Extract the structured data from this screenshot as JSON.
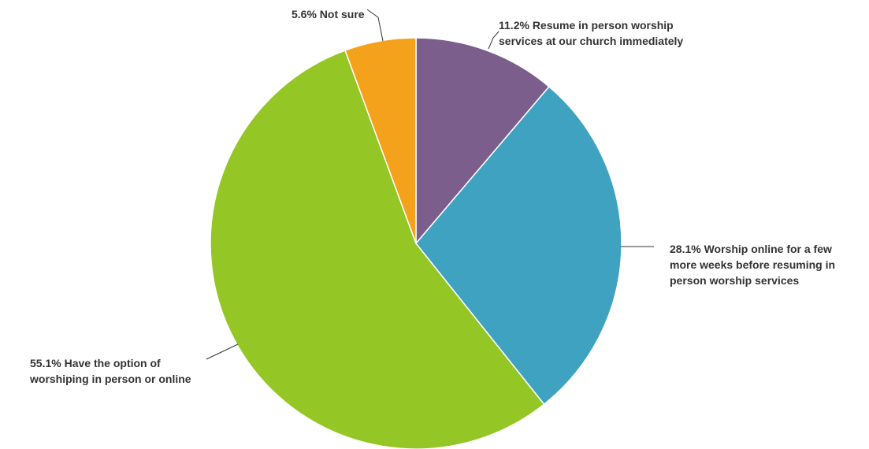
{
  "chart_data": {
    "type": "pie",
    "slices": [
      {
        "pct_label": "11.2%",
        "label_lines": [
          "Resume in person worship",
          "services at our church immediately"
        ],
        "value": 11.2,
        "color": "#7b5e8c"
      },
      {
        "pct_label": "28.1%",
        "label_lines": [
          "Worship online for a few",
          "more weeks before resuming in",
          "person worship services"
        ],
        "value": 28.1,
        "color": "#40a2c1"
      },
      {
        "pct_label": "55.1%",
        "label_lines": [
          "Have the option of",
          "worshiping in person or online"
        ],
        "value": 55.1,
        "color": "#94c625"
      },
      {
        "pct_label": "5.6%",
        "label_lines": [
          "Not sure"
        ],
        "value": 5.6,
        "color": "#f4a11c"
      }
    ],
    "start_angle": "12 o'clock",
    "direction": "clockwise",
    "legend": "none"
  }
}
